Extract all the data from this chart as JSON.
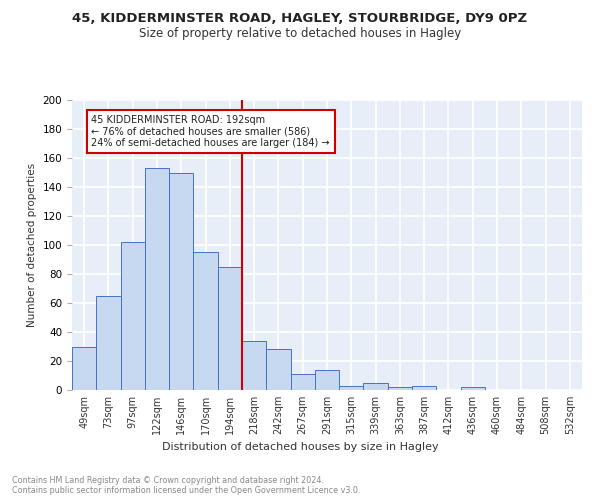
{
  "title1": "45, KIDDERMINSTER ROAD, HAGLEY, STOURBRIDGE, DY9 0PZ",
  "title2": "Size of property relative to detached houses in Hagley",
  "xlabel": "Distribution of detached houses by size in Hagley",
  "ylabel": "Number of detached properties",
  "bar_labels": [
    "49sqm",
    "73sqm",
    "97sqm",
    "122sqm",
    "146sqm",
    "170sqm",
    "194sqm",
    "218sqm",
    "242sqm",
    "267sqm",
    "291sqm",
    "315sqm",
    "339sqm",
    "363sqm",
    "387sqm",
    "412sqm",
    "436sqm",
    "460sqm",
    "484sqm",
    "508sqm",
    "532sqm"
  ],
  "bar_values": [
    30,
    65,
    102,
    153,
    150,
    95,
    85,
    34,
    28,
    11,
    14,
    3,
    5,
    2,
    3,
    0,
    2,
    0,
    0,
    0,
    0
  ],
  "bar_color": "#c6d9f0",
  "bar_edge_color": "#4472c4",
  "vline_x": 6.5,
  "vline_color": "#cc0000",
  "annotation_text": "45 KIDDERMINSTER ROAD: 192sqm\n← 76% of detached houses are smaller (586)\n24% of semi-detached houses are larger (184) →",
  "annotation_box_color": "#ffffff",
  "annotation_box_edge": "#cc0000",
  "ylim": [
    0,
    200
  ],
  "yticks": [
    0,
    20,
    40,
    60,
    80,
    100,
    120,
    140,
    160,
    180,
    200
  ],
  "footer1": "Contains HM Land Registry data © Crown copyright and database right 2024.",
  "footer2": "Contains public sector information licensed under the Open Government Licence v3.0.",
  "bg_color": "#e8eef8",
  "grid_color": "#ffffff",
  "fig_width": 6.0,
  "fig_height": 5.0,
  "dpi": 100
}
